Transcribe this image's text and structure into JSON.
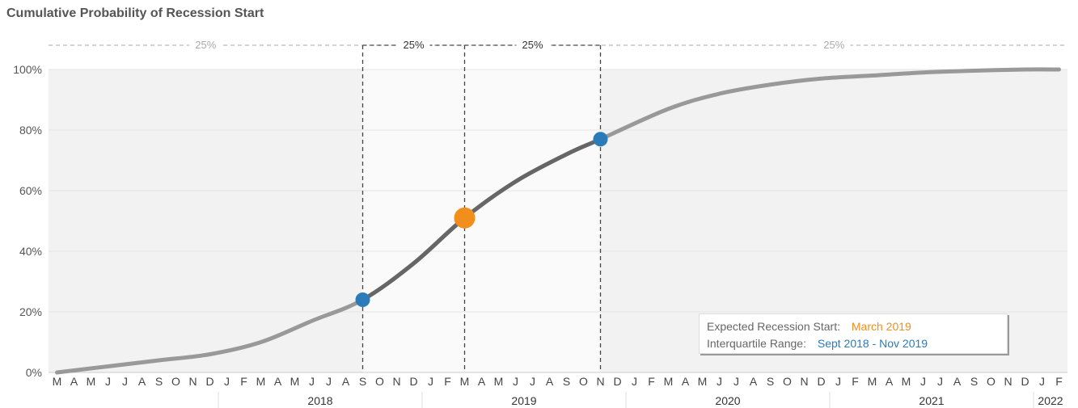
{
  "chart_data": {
    "type": "line",
    "title": "Cumulative Probability of Recession Start",
    "ylim": [
      0,
      100
    ],
    "y_ticks": [
      "0%",
      "20%",
      "40%",
      "60%",
      "80%",
      "100%"
    ],
    "x_month_labels": [
      "M",
      "A",
      "M",
      "J",
      "J",
      "A",
      "S",
      "O",
      "N",
      "D",
      "J",
      "F",
      "M",
      "A",
      "M",
      "J",
      "J",
      "A",
      "S",
      "O",
      "N",
      "D",
      "J",
      "F",
      "M",
      "A",
      "M",
      "J",
      "J",
      "A",
      "S",
      "O",
      "N",
      "D",
      "J",
      "F",
      "M",
      "A",
      "M",
      "J",
      "J",
      "A",
      "S",
      "O",
      "N",
      "D",
      "J",
      "F",
      "M",
      "A",
      "M",
      "J",
      "J",
      "A",
      "S",
      "O",
      "N",
      "D",
      "J",
      "F"
    ],
    "x_year_labels": [
      "2018",
      "2019",
      "2020",
      "2021",
      "2022"
    ],
    "series": [
      {
        "x": [
          "2017-03",
          "2017-06",
          "2017-09",
          "2017-12",
          "2018-03",
          "2018-06",
          "2018-09",
          "2018-12",
          "2019-03",
          "2019-06",
          "2019-09",
          "2019-11",
          "2020-03",
          "2020-06",
          "2020-09",
          "2020-12",
          "2021-03",
          "2021-06",
          "2021-09",
          "2021-12",
          "2022-02"
        ],
        "y": [
          0,
          2,
          4,
          6,
          10,
          17,
          24,
          36,
          51,
          63,
          72,
          77,
          87,
          92,
          95,
          97,
          98,
          99,
          99.6,
          100,
          100
        ]
      }
    ],
    "highlight_points": [
      {
        "x": "2018-09",
        "y": 24,
        "color": "#2b7bb9"
      },
      {
        "x": "2019-03",
        "y": 51,
        "color": "#f28e1c"
      },
      {
        "x": "2019-11",
        "y": 77,
        "color": "#2b7bb9"
      }
    ],
    "quartile_bands": [
      {
        "label": "25%",
        "from": "2017-03",
        "to": "2018-09"
      },
      {
        "label": "25%",
        "from": "2018-09",
        "to": "2019-03"
      },
      {
        "label": "25%",
        "from": "2019-03",
        "to": "2019-11"
      },
      {
        "label": "25%",
        "from": "2019-11",
        "to": "2022-02"
      }
    ],
    "grid": true
  },
  "legend": {
    "expected_label": "Expected Recession Start:",
    "expected_value": "March 2019",
    "expected_color": "#f28e1c",
    "iqr_label": "Interquartile Range:",
    "iqr_value": "Sept 2018 - Nov 2019",
    "iqr_color": "#2b7bb9"
  },
  "colors": {
    "line_outer": "#999999",
    "line_inner": "#666666",
    "band_outer": "#f2f2f2",
    "band_inner": "#fafafa"
  }
}
